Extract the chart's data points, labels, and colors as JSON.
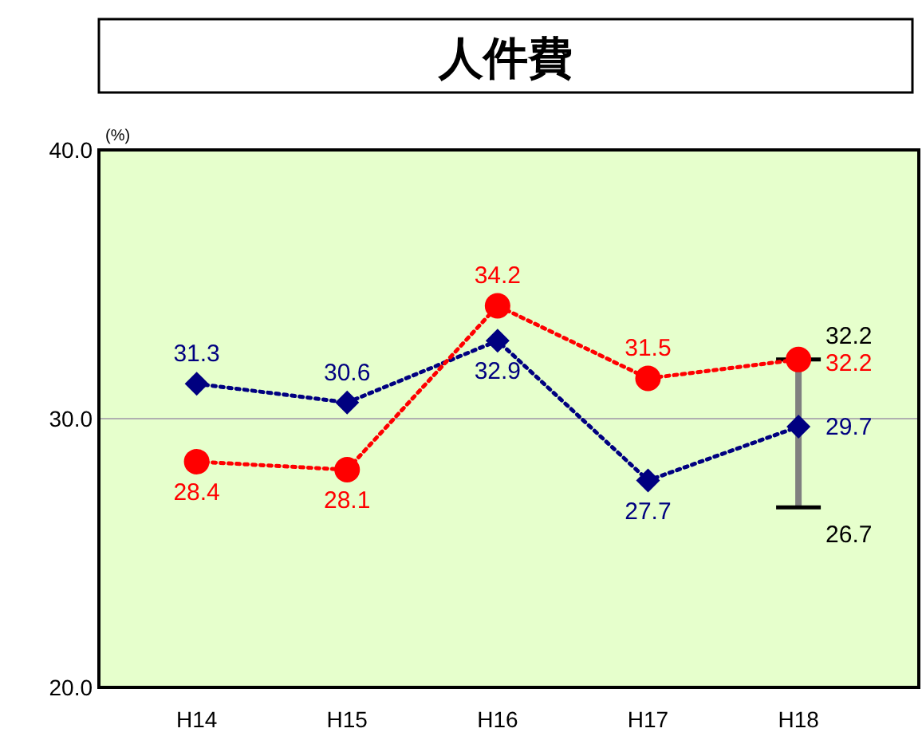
{
  "chart_data": {
    "type": "line",
    "title": "人件費",
    "categories": [
      "H14",
      "H15",
      "H16",
      "H17",
      "H18"
    ],
    "series": [
      {
        "color": "#000080",
        "values": [
          31.3,
          30.6,
          32.9,
          27.7,
          29.7
        ],
        "marker": "diamond"
      },
      {
        "color": "#ff0000",
        "values": [
          28.4,
          28.1,
          34.2,
          31.5,
          32.2
        ],
        "marker": "circle",
        "errors": [
          null,
          null,
          null,
          null,
          [
            26.7,
            32.2
          ]
        ]
      }
    ],
    "ylim": [
      20,
      40
    ],
    "yticks": [
      {
        "value": 20,
        "label": "20.0"
      },
      {
        "value": 30,
        "label": "30.0"
      },
      {
        "value": 40,
        "label": "40.0"
      }
    ],
    "grid": "y",
    "line_style": "dotted",
    "data_labels": true,
    "annotations": [
      "(%)",
      {
        "text": "32.2",
        "x": "H18",
        "y": 32.2
      },
      {
        "text": "26.7",
        "x": "H18",
        "y": 26.7
      }
    ]
  }
}
